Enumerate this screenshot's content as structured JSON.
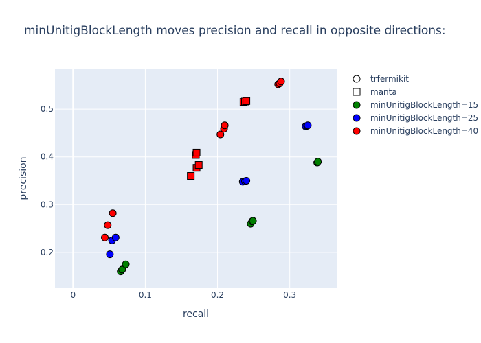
{
  "chart_data": {
    "type": "scatter",
    "title": "minUnitigBlockLength moves precision and recall in opposite directions:",
    "xlabel": "recall",
    "ylabel": "precision",
    "xlim": [
      -0.025,
      0.365
    ],
    "ylim": [
      0.125,
      0.585
    ],
    "xticks": [
      0,
      0.1,
      0.2,
      0.3
    ],
    "xtick_labels": [
      "0",
      "0.1",
      "0.2",
      "0.3"
    ],
    "yticks": [
      0.2,
      0.3,
      0.4,
      0.5
    ],
    "ytick_labels": [
      "0.2",
      "0.3",
      "0.4",
      "0.5"
    ],
    "grid": true,
    "legend_position": "top-right outside",
    "colors": {
      "plot_bg": "#e5ecf6",
      "grid": "#ffffff",
      "green": "#008000",
      "blue": "#0000ff",
      "red": "#ff0000"
    },
    "legend": [
      {
        "label": "trfermikit",
        "symbol": "circle",
        "color": ""
      },
      {
        "label": "manta",
        "symbol": "square",
        "color": ""
      },
      {
        "label": "minUnitigBlockLength=15",
        "symbol": "circle",
        "color": "#008000"
      },
      {
        "label": "minUnitigBlockLength=25",
        "symbol": "circle",
        "color": "#0000ff"
      },
      {
        "label": "minUnitigBlockLength=40",
        "symbol": "circle",
        "color": "#ff0000"
      }
    ],
    "series": [
      {
        "name": "minUnitigBlockLength=15",
        "caller": "trfermikit",
        "symbol": "circle",
        "color": "#008000",
        "points": [
          [
            0.066,
            0.16
          ],
          [
            0.068,
            0.164
          ],
          [
            0.073,
            0.175
          ],
          [
            0.246,
            0.26
          ],
          [
            0.248,
            0.265
          ],
          [
            0.249,
            0.266
          ],
          [
            0.338,
            0.388
          ],
          [
            0.339,
            0.39
          ]
        ]
      },
      {
        "name": "minUnitigBlockLength=25",
        "caller": "trfermikit",
        "symbol": "circle",
        "color": "#0000ff",
        "points": [
          [
            0.051,
            0.196
          ],
          [
            0.054,
            0.225
          ],
          [
            0.059,
            0.231
          ],
          [
            0.235,
            0.348
          ],
          [
            0.238,
            0.349
          ],
          [
            0.24,
            0.35
          ],
          [
            0.322,
            0.464
          ],
          [
            0.324,
            0.465
          ],
          [
            0.325,
            0.466
          ]
        ]
      },
      {
        "name": "minUnitigBlockLength=40",
        "caller": "trfermikit",
        "symbol": "circle",
        "color": "#ff0000",
        "points": [
          [
            0.044,
            0.231
          ],
          [
            0.048,
            0.257
          ],
          [
            0.055,
            0.282
          ],
          [
            0.204,
            0.447
          ],
          [
            0.209,
            0.459
          ],
          [
            0.21,
            0.466
          ],
          [
            0.284,
            0.552
          ],
          [
            0.286,
            0.554
          ],
          [
            0.288,
            0.558
          ]
        ]
      },
      {
        "name": "minUnitigBlockLength=40",
        "caller": "manta",
        "symbol": "square",
        "color": "#ff0000",
        "points": [
          [
            0.163,
            0.36
          ],
          [
            0.171,
            0.377
          ],
          [
            0.174,
            0.383
          ],
          [
            0.17,
            0.404
          ],
          [
            0.171,
            0.409
          ],
          [
            0.236,
            0.515
          ],
          [
            0.238,
            0.516
          ],
          [
            0.24,
            0.517
          ]
        ]
      }
    ]
  }
}
